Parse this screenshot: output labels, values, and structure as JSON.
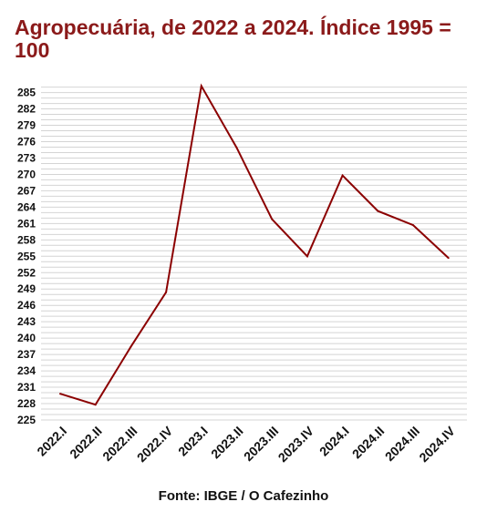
{
  "title": "Agropecuária, de 2022 a 2024. Índice 1995 = 100",
  "source": "Fonte: IBGE / O Cafezinho",
  "chart_data": {
    "type": "line",
    "title": "Agropecuária, de 2022 a 2024. Índice 1995 = 100",
    "xlabel": "",
    "ylabel": "",
    "categories": [
      "2022.I",
      "2022.II",
      "2022.III",
      "2022.IV",
      "2023.I",
      "2023.II",
      "2023.III",
      "2023.IV",
      "2024.I",
      "2024.II",
      "2024.III",
      "2024.IV"
    ],
    "series": [
      {
        "values": [
          229.8,
          227.8,
          238.4,
          248.4,
          286.2,
          274.9,
          261.8,
          255.0,
          269.8,
          263.3,
          260.7,
          254.7
        ]
      }
    ],
    "ylim": [
      225,
      286.6
    ],
    "yticks": [
      225,
      228,
      231,
      234,
      237,
      240,
      243,
      246,
      249,
      252,
      255,
      258,
      261,
      264,
      267,
      270,
      273,
      276,
      279,
      282,
      285
    ],
    "grid": true,
    "line_color": "#8b0000",
    "legend": "none"
  }
}
